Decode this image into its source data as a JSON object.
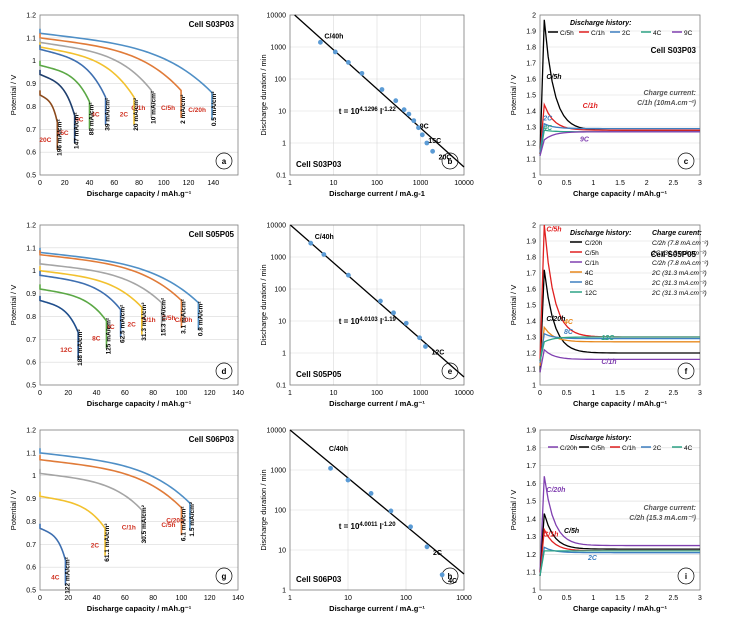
{
  "figure": {
    "layout": "3x3 grid of electrochemical discharge/charge plots"
  },
  "panels": [
    {
      "id": "a",
      "kind": "discharge",
      "cell": "Cell S03P03",
      "letter": "a",
      "xlabel": "Discharge capacity / mAh.g⁻¹",
      "ylabel": "Potential / V",
      "xlim": [
        0,
        160
      ],
      "xticks": [
        0,
        20,
        40,
        60,
        80,
        100,
        120,
        140
      ],
      "ylim": [
        0.5,
        1.2
      ],
      "yticks": [
        0.5,
        0.6,
        0.7,
        0.8,
        0.9,
        1,
        1.1,
        1.2
      ],
      "curves": [
        {
          "label": "C/20h",
          "cap": 139,
          "v0": 1.12,
          "vf": 0.86,
          "color": "#4f8fc6",
          "rate": "0.5 mA/cm²",
          "rateColor": "#000000"
        },
        {
          "label": "C/5h",
          "cap": 114,
          "v0": 1.1,
          "vf": 0.87,
          "color": "#e07b39",
          "rate": "2 mA/cm²",
          "rateColor": "#000000"
        },
        {
          "label": "C/1h",
          "cap": 90,
          "v0": 1.08,
          "vf": 0.87,
          "color": "#a5a5a5",
          "rate": "10 mA/cm²",
          "rateColor": "#000000"
        },
        {
          "label": "2C",
          "cap": 76,
          "v0": 1.06,
          "vf": 0.84,
          "color": "#f2c12e",
          "rate": "20 mA/cm²",
          "rateColor": "#000000"
        },
        {
          "label": "4C",
          "cap": 53,
          "v0": 1.05,
          "vf": 0.84,
          "color": "#3e6fb0",
          "rate": "39 mA/cm²",
          "rateColor": "#000000"
        },
        {
          "label": "9C",
          "cap": 40,
          "v0": 0.98,
          "vf": 0.82,
          "color": "#5ba845",
          "rate": "88 mA/cm²",
          "rateColor": "#000000"
        },
        {
          "label": "15C",
          "cap": 28,
          "v0": 0.94,
          "vf": 0.76,
          "color": "#1f3f6e",
          "rate": "147 mA/cm²",
          "rateColor": "#000000"
        },
        {
          "label": "20C",
          "cap": 14,
          "v0": 0.85,
          "vf": 0.73,
          "color": "#8c4a1c",
          "rate": "196 mA/cm²",
          "rateColor": "#000000"
        }
      ]
    },
    {
      "id": "b",
      "kind": "loglog",
      "cell": "Cell S03P03",
      "letter": "b",
      "xlabel": "Discharge current / mA.g-1",
      "ylabel": "Discharge duration / min",
      "xlim": [
        1,
        10000
      ],
      "ylim": [
        0.1,
        10000
      ],
      "xticks": [
        "1",
        "10",
        "100",
        "1000",
        "10000"
      ],
      "yticks": [
        "0.1",
        "1",
        "10",
        "100",
        "1000",
        "10000"
      ],
      "fit": "t = 10^4.1296 I^-1.22",
      "fitBase": "t = 10",
      "fitExp": "4.1296",
      "fitI": " I",
      "fitIExp": "-1.22",
      "fitLine": {
        "a": 4.1296,
        "b": -1.22
      },
      "points": [
        [
          5,
          1400
        ],
        [
          11,
          700
        ],
        [
          22,
          330
        ],
        [
          45,
          150
        ],
        [
          130,
          47
        ],
        [
          270,
          21
        ],
        [
          420,
          11
        ],
        [
          540,
          8
        ],
        [
          700,
          5
        ],
        [
          900,
          3
        ],
        [
          1100,
          1.8
        ],
        [
          1400,
          1.0
        ],
        [
          1900,
          0.55
        ]
      ],
      "tags": [
        {
          "text": "C/40h",
          "x": 5,
          "y": 1400
        },
        {
          "text": "9C",
          "x": 700,
          "y": 5
        },
        {
          "text": "15C",
          "x": 1100,
          "y": 1.8
        },
        {
          "text": "20C",
          "x": 1900,
          "y": 0.55
        }
      ]
    },
    {
      "id": "c",
      "kind": "charge",
      "cell": "Cell S03P03",
      "letter": "c",
      "xlabel": "Charge capacity / mAh.g⁻¹",
      "ylabel": "Potential / V",
      "xlim": [
        0,
        3
      ],
      "xticks": [
        0,
        0.5,
        1,
        1.5,
        2,
        2.5,
        3
      ],
      "ylim": [
        1,
        2
      ],
      "yticks": [
        1,
        1.1,
        1.2,
        1.3,
        1.4,
        1.5,
        1.6,
        1.7,
        1.8,
        1.9,
        2
      ],
      "legendTitle": "Discharge history:",
      "legend": [
        {
          "label": "C/5h",
          "color": "#000000"
        },
        {
          "label": "C/1h",
          "color": "#e02020"
        },
        {
          "label": "2C",
          "color": "#3e7fc1"
        },
        {
          "label": "4C",
          "color": "#2ea385"
        },
        {
          "label": "9C",
          "color": "#8040b0"
        }
      ],
      "note": "Charge current:",
      "note2": "C/1h (10mA.cm⁻²)",
      "curves": [
        {
          "label": "C/5h",
          "color": "#000000",
          "peak": 1.97,
          "tail": 1.28
        },
        {
          "label": "C/1h",
          "color": "#e02020",
          "peak": 1.44,
          "tail": 1.28
        },
        {
          "label": "2C",
          "color": "#3e7fc1",
          "peak": 1.32,
          "tail": 1.29
        },
        {
          "label": "4C",
          "color": "#2ea385",
          "peak": 1.28,
          "tail": 1.27
        },
        {
          "label": "9C",
          "color": "#8040b0",
          "peak": 1.22,
          "tail": 1.27
        }
      ],
      "tags": [
        {
          "text": "C/5h",
          "x": 0.12,
          "y": 1.6
        },
        {
          "text": "C/1h",
          "x": 0.8,
          "y": 1.42
        },
        {
          "text": "2C",
          "x": 0.06,
          "y": 1.34
        },
        {
          "text": "4C",
          "x": 0.06,
          "y": 1.28
        },
        {
          "text": "9C",
          "x": 0.75,
          "y": 1.21
        }
      ]
    },
    {
      "id": "d",
      "kind": "discharge",
      "cell": "Cell S05P05",
      "letter": "d",
      "xlabel": "Discharge capacity / mAh.g⁻¹",
      "ylabel": "Potential / V",
      "xlim": [
        0,
        140
      ],
      "xticks": [
        0,
        20,
        40,
        60,
        80,
        100,
        120,
        140
      ],
      "ylim": [
        0.5,
        1.2
      ],
      "yticks": [
        0.5,
        0.6,
        0.7,
        0.8,
        0.9,
        1,
        1.1,
        1.2
      ],
      "curves": [
        {
          "label": "C/20h",
          "cap": 112,
          "v0": 1.08,
          "vf": 0.86,
          "color": "#4f8fc6",
          "rate": "0.8 mA/cm²",
          "rateColor": "#000000"
        },
        {
          "label": "C/5h",
          "cap": 100,
          "v0": 1.07,
          "vf": 0.87,
          "color": "#e07b39",
          "rate": "3.1 mA/cm²",
          "rateColor": "#000000"
        },
        {
          "label": "C/1h",
          "cap": 86,
          "v0": 1.03,
          "vf": 0.86,
          "color": "#a5a5a5",
          "rate": "15.3 mA/cm²",
          "rateColor": "#000000"
        },
        {
          "label": "2C",
          "cap": 72,
          "v0": 1.0,
          "vf": 0.84,
          "color": "#f2c12e",
          "rate": "31.3 mA/cm²",
          "rateColor": "#000000"
        },
        {
          "label": "4C",
          "cap": 57,
          "v0": 0.98,
          "vf": 0.83,
          "color": "#3e6fb0",
          "rate": "62.5 mA/cm²",
          "rateColor": "#000000"
        },
        {
          "label": "8C",
          "cap": 47,
          "v0": 0.92,
          "vf": 0.78,
          "color": "#5ba845",
          "rate": "125 mA/cm²",
          "rateColor": "#000000"
        },
        {
          "label": "12C",
          "cap": 27,
          "v0": 0.87,
          "vf": 0.73,
          "color": "#1f4e8c",
          "rate": "188 mA/cm²",
          "rateColor": "#000000"
        }
      ]
    },
    {
      "id": "e",
      "kind": "loglog",
      "cell": "Cell S05P05",
      "letter": "e",
      "xlabel": "Discharge current / mA.g⁻¹",
      "ylabel": "Discharge duration / min",
      "xlim": [
        1,
        10000
      ],
      "ylim": [
        0.1,
        10000
      ],
      "xticks": [
        "1",
        "10",
        "100",
        "1000",
        "10000"
      ],
      "yticks": [
        "0.1",
        "1",
        "10",
        "100",
        "1000",
        "10000"
      ],
      "fit": "t = 10^4.0103 I^-1.19",
      "fitBase": "t = 10",
      "fitExp": "4.0103",
      "fitI": " I",
      "fitIExp": "-1.19",
      "fitLine": {
        "a": 4.0103,
        "b": -1.19
      },
      "points": [
        [
          3,
          2700
        ],
        [
          6,
          1200
        ],
        [
          22,
          270
        ],
        [
          120,
          42
        ],
        [
          240,
          18
        ],
        [
          470,
          8.5
        ],
        [
          950,
          3
        ],
        [
          1300,
          1.6
        ]
      ],
      "tags": [
        {
          "text": "C/40h",
          "x": 3,
          "y": 2700
        },
        {
          "text": "12C",
          "x": 1300,
          "y": 1.6
        }
      ]
    },
    {
      "id": "f",
      "kind": "charge",
      "cell": "Cell S05P05",
      "letter": "f",
      "xlabel": "Charge capacity / mAh.g⁻¹",
      "ylabel": "Potential / V",
      "xlim": [
        0,
        3
      ],
      "xticks": [
        0,
        0.5,
        1,
        1.5,
        2,
        2.5,
        3
      ],
      "ylim": [
        1,
        2
      ],
      "yticks": [
        1,
        1.1,
        1.2,
        1.3,
        1.4,
        1.5,
        1.6,
        1.7,
        1.8,
        1.9,
        2
      ],
      "legendTitle": "Discharge history:",
      "legendTitle2": "Charge curent:",
      "legend": [
        {
          "label": "C/20h",
          "color": "#000000",
          "charge": "C/2h (7.8 mA.cm⁻²)"
        },
        {
          "label": "C/5h",
          "color": "#e02020",
          "charge": "2C (31.3 mA.cm⁻²)"
        },
        {
          "label": "C/1h",
          "color": "#8040b0",
          "charge": "C/2h (7.8 mA.cm⁻²)"
        },
        {
          "label": "4C",
          "color": "#e8891e",
          "charge": "2C (31.3 mA.cm⁻²)"
        },
        {
          "label": "8C",
          "color": "#3e7fc1",
          "charge": "2C (31.3 mA.cm⁻²)"
        },
        {
          "label": "12C",
          "color": "#2ea385",
          "charge": "2C (31.3 mA.cm⁻²)"
        }
      ],
      "curves": [
        {
          "label": "C/20h",
          "color": "#000000",
          "peak": 1.72,
          "tail": 1.2
        },
        {
          "label": "C/5h",
          "color": "#e02020",
          "peak": 2.0,
          "tail": 1.3
        },
        {
          "label": "C/1h",
          "color": "#8040b0",
          "peak": 1.22,
          "tail": 1.16
        },
        {
          "label": "4C",
          "color": "#e8891e",
          "peak": 1.36,
          "tail": 1.27
        },
        {
          "label": "8C",
          "color": "#3e7fc1",
          "peak": 1.32,
          "tail": 1.29
        },
        {
          "label": "12C",
          "color": "#2ea385",
          "peak": 1.27,
          "tail": 1.3
        }
      ],
      "tags": [
        {
          "text": "C/5h",
          "x": 0.12,
          "y": 1.96
        },
        {
          "text": "C/20h",
          "x": 0.12,
          "y": 1.4
        },
        {
          "text": "4C",
          "x": 0.45,
          "y": 1.38
        },
        {
          "text": "8C",
          "x": 0.45,
          "y": 1.32
        },
        {
          "text": "12C",
          "x": 1.15,
          "y": 1.28
        },
        {
          "text": "C/1h",
          "x": 1.15,
          "y": 1.13
        }
      ]
    },
    {
      "id": "g",
      "kind": "discharge",
      "cell": "Cell S06P03",
      "letter": "g",
      "xlabel": "Discharge capacity / mAh.g⁻¹",
      "ylabel": "Potential / V",
      "xlim": [
        0,
        140
      ],
      "xticks": [
        0,
        20,
        40,
        60,
        80,
        100,
        120,
        140
      ],
      "ylim": [
        0.5,
        1.2
      ],
      "yticks": [
        0.5,
        0.6,
        0.7,
        0.8,
        0.9,
        1,
        1.1,
        1.2
      ],
      "curves": [
        {
          "label": "C/20h",
          "cap": 106,
          "v0": 1.1,
          "vf": 0.88,
          "color": "#4f8fc6",
          "rate": "1.5 mA/cm²",
          "rateColor": "#000000"
        },
        {
          "label": "C/5h",
          "cap": 100,
          "v0": 1.07,
          "vf": 0.86,
          "color": "#e07b39",
          "rate": "6.1 mA/cm²",
          "rateColor": "#000000"
        },
        {
          "label": "C/1h",
          "cap": 72,
          "v0": 1.01,
          "vf": 0.85,
          "color": "#a5a5a5",
          "rate": "30.5 mA/cm²",
          "rateColor": "#000000"
        },
        {
          "label": "2C",
          "cap": 46,
          "v0": 0.91,
          "vf": 0.77,
          "color": "#f2c12e",
          "rate": "61.1 mA/cm²",
          "rateColor": "#000000"
        },
        {
          "label": "4C",
          "cap": 18,
          "v0": 0.77,
          "vf": 0.63,
          "color": "#3e6fb0",
          "rate": "122 mA/cm²",
          "rateColor": "#000000"
        }
      ]
    },
    {
      "id": "h",
      "kind": "loglog",
      "cell": "Cell S06P03",
      "letter": "h",
      "xlabel": "Discharge current / mA.g⁻¹",
      "ylabel": "Discharge duration / min",
      "xlim": [
        1,
        1000
      ],
      "ylim": [
        1,
        10000
      ],
      "xticks": [
        "1",
        "10",
        "100",
        "1000"
      ],
      "yticks": [
        "1",
        "10",
        "100",
        "1000",
        "10000"
      ],
      "fit": "t = 10^4.0011 I^-1.20",
      "fitBase": "t = 10",
      "fitExp": "4.0011",
      "fitI": " I",
      "fitIExp": "-1.20",
      "fitLine": {
        "a": 4.0011,
        "b": -1.2
      },
      "points": [
        [
          5,
          1100
        ],
        [
          10,
          560
        ],
        [
          25,
          260
        ],
        [
          55,
          95
        ],
        [
          120,
          38
        ],
        [
          230,
          12
        ],
        [
          420,
          2.4
        ]
      ],
      "tags": [
        {
          "text": "C/40h",
          "x": 4,
          "y": 2400
        },
        {
          "text": "2C",
          "x": 230,
          "y": 12
        },
        {
          "text": "4C",
          "x": 420,
          "y": 2.4
        }
      ]
    },
    {
      "id": "i",
      "kind": "charge",
      "cell": "",
      "letter": "i",
      "xlabel": "Charge capacity / mAh.g⁻¹",
      "ylabel": "Potential / V",
      "xlim": [
        0,
        3
      ],
      "xticks": [
        0,
        0.5,
        1,
        1.5,
        2,
        2.5,
        3
      ],
      "ylim": [
        1,
        1.9
      ],
      "yticks": [
        1,
        1.1,
        1.2,
        1.3,
        1.4,
        1.5,
        1.6,
        1.7,
        1.8,
        1.9
      ],
      "legendTitle": "Discharge history:",
      "legend": [
        {
          "label": "C/20h",
          "color": "#8040b0"
        },
        {
          "label": "C/5h",
          "color": "#000000"
        },
        {
          "label": "C/1h",
          "color": "#e02020"
        },
        {
          "label": "2C",
          "color": "#3e7fc1"
        },
        {
          "label": "4C",
          "color": "#2ea385"
        }
      ],
      "note": "Charge current:",
      "note2": "C/2h (15.3 mA.cm⁻²)",
      "curves": [
        {
          "label": "C/20h",
          "color": "#8040b0",
          "peak": 1.64,
          "tail": 1.25
        },
        {
          "label": "C/5h",
          "color": "#000000",
          "peak": 1.43,
          "tail": 1.23
        },
        {
          "label": "C/1h",
          "color": "#e02020",
          "peak": 1.34,
          "tail": 1.22
        },
        {
          "label": "2C",
          "color": "#3e7fc1",
          "peak": 1.24,
          "tail": 1.21
        },
        {
          "label": "4C",
          "color": "#2ea385",
          "peak": 1.22,
          "tail": 1.22
        }
      ],
      "tags": [
        {
          "text": "C/20h",
          "x": 0.12,
          "y": 1.55
        },
        {
          "text": "C/5h",
          "x": 0.45,
          "y": 1.32
        },
        {
          "text": "C/1h",
          "x": 0.06,
          "y": 1.3
        },
        {
          "text": "2C",
          "x": 0.9,
          "y": 1.17
        }
      ]
    }
  ]
}
